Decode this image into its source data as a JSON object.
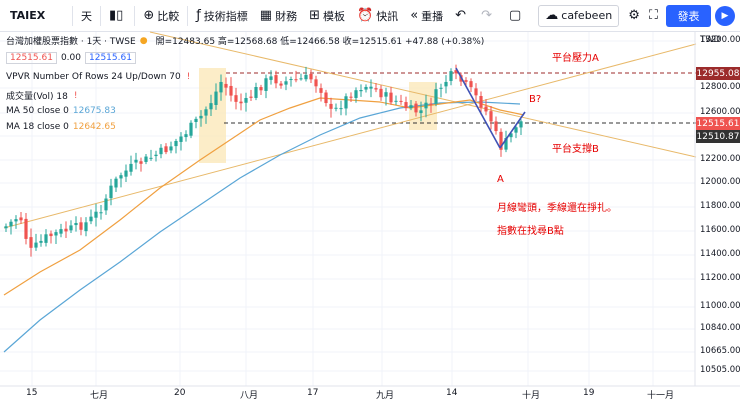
{
  "toolbar": {
    "symbol": "TAIEX",
    "interval": "天",
    "compare_label": "比較",
    "indicators_label": "技術指標",
    "financials_label": "財務",
    "templates_label": "模板",
    "alert_label": "快訊",
    "replay_label": "重播",
    "username": "cafebeen",
    "publish_label": "發表"
  },
  "legend": {
    "title": "台灣加權股票指數 · 1天 · TWSE",
    "ohlc": "開=12483.65 高=12568.68 低=12466.58 收=12515.61 +47.88 (+0.38%)",
    "price_box1": "12515.61",
    "spread": "0.00",
    "price_box2": "12515.61",
    "vpvr": "VPVR Number Of Rows 24 Up/Down 70",
    "volume": "成交量(Vol) 18",
    "ma50_label": "MA 50 close 0",
    "ma50_value": "12675.83",
    "ma18_label": "MA 18 close 0",
    "ma18_value": "12642.65"
  },
  "axis": {
    "currency": "TWD",
    "y_ticks": [
      "13200.00",
      "12800.00",
      "12600.00",
      "12400.00",
      "12200.00",
      "12000.00",
      "11800.00",
      "11600.00",
      "11400.00",
      "11200.00",
      "11000.00",
      "10840.00",
      "10665.00",
      "10505.00"
    ],
    "tag_resistance": "12955.08",
    "tag_last": "12515.61",
    "tag_support": "12510.87",
    "x_ticks": [
      "15",
      "七月",
      "20",
      "八月",
      "17",
      "九月",
      "14",
      "十月",
      "19",
      "十一月"
    ]
  },
  "annotations": {
    "resistance": "平台壓力A",
    "support": "平台支撐B",
    "point_b": "B?",
    "point_a": "A",
    "note1": "月線彎頭，季線還在掙扎。",
    "note2": "指數在找尋B點"
  },
  "colors": {
    "up": "#26a69a",
    "down": "#ef5350",
    "ma50": "#5aa6d6",
    "ma18": "#f0a040",
    "annotation": "#e60000",
    "highlight": "#fbe7b5",
    "trend": "#e8b96a"
  }
}
